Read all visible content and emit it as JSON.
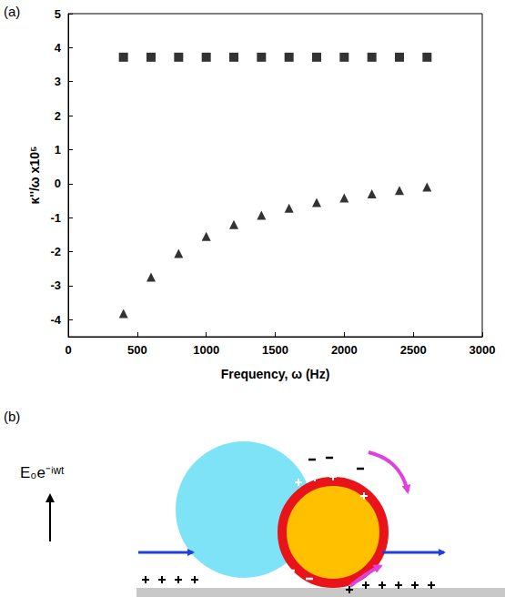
{
  "chart_data": {
    "type": "scatter",
    "panel_label": "(a)",
    "x_label": "Frequency, ω (Hz)",
    "y_label": "κ''/ω x10⁵",
    "x": [
      400,
      600,
      800,
      1000,
      1200,
      1400,
      1600,
      1800,
      2000,
      2200,
      2400,
      2600
    ],
    "series": [
      {
        "marker": "square",
        "color": "#000000",
        "values": [
          3.72,
          3.72,
          3.72,
          3.72,
          3.72,
          3.72,
          3.72,
          3.72,
          3.72,
          3.72,
          3.72,
          3.72
        ]
      },
      {
        "marker": "triangle",
        "color": "#000000",
        "values": [
          -3.82,
          -2.75,
          -2.05,
          -1.55,
          -1.2,
          -0.93,
          -0.72,
          -0.55,
          -0.42,
          -0.3,
          -0.2,
          -0.1
        ]
      }
    ],
    "xlim": [
      0,
      3000
    ],
    "xticks": [
      0,
      500,
      1000,
      1500,
      2000,
      2500,
      3000
    ],
    "ylim": [
      -4.5,
      5
    ],
    "yticks": [
      -4,
      -3,
      -2,
      -1,
      0,
      1,
      2,
      3,
      4,
      5
    ],
    "grid": false
  },
  "diagram": {
    "panel_label": "(b)",
    "field_label": "E₀e⁻ⁱʷᵗ"
  }
}
